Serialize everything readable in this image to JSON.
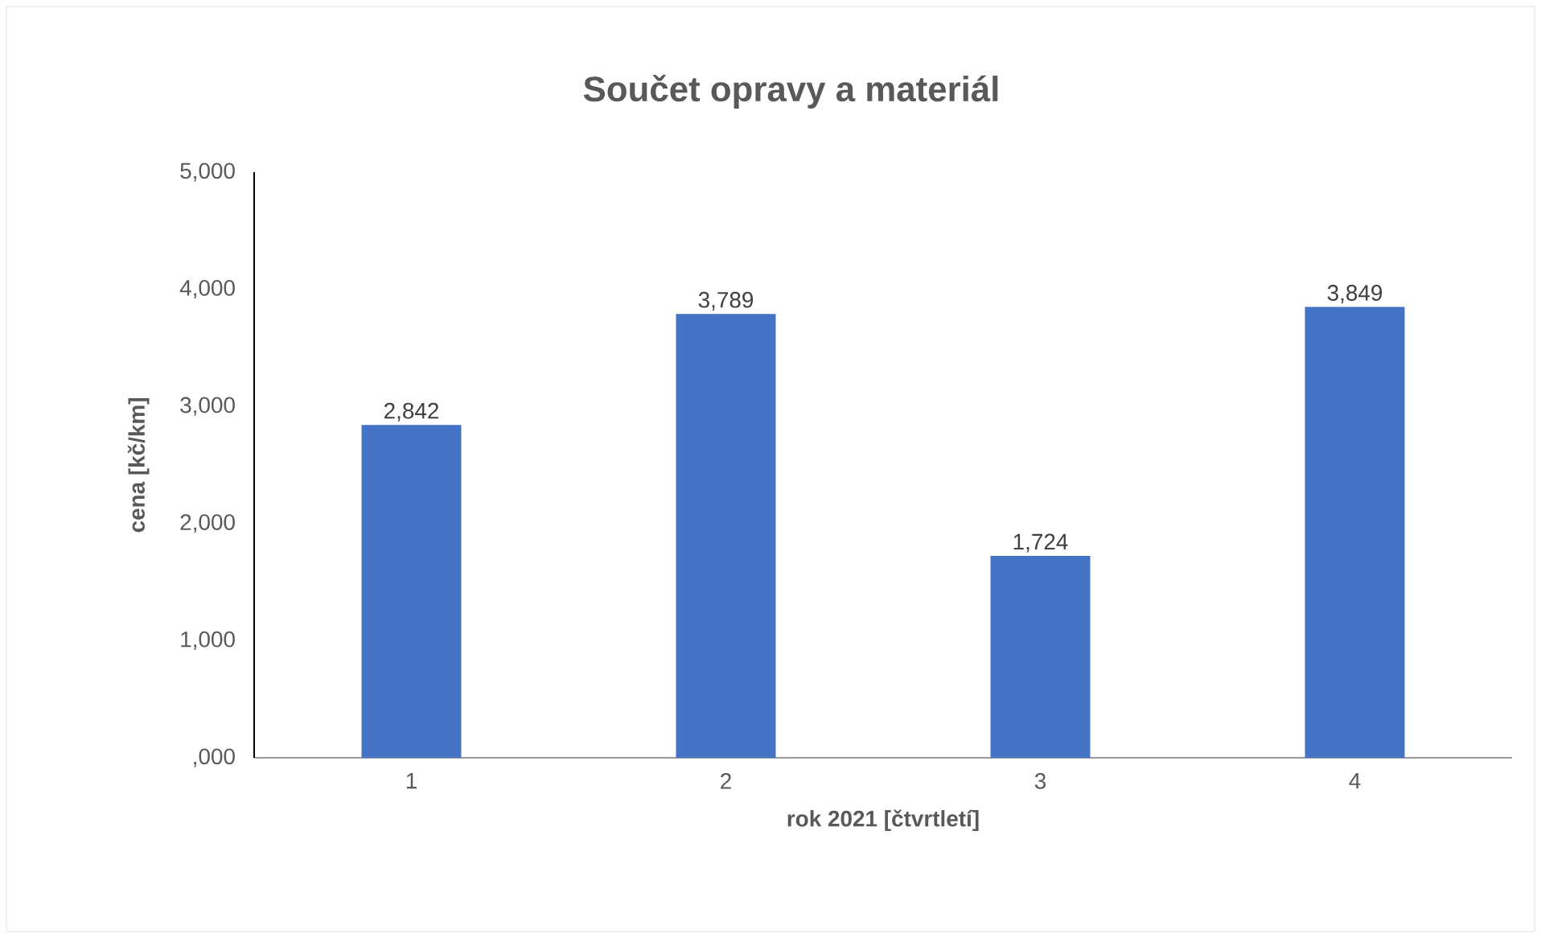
{
  "chart_data": {
    "type": "bar",
    "title": "Součet opravy a materiál",
    "xlabel": "rok 2021 [čtvrtletí]",
    "ylabel": "cena [kč/km]",
    "categories": [
      "1",
      "2",
      "3",
      "4"
    ],
    "values": [
      2842,
      3789,
      1724,
      3849
    ],
    "value_labels": [
      "2,842",
      "3,789",
      "1,724",
      "3,849"
    ],
    "color": "#4472c4",
    "ylim": [
      0,
      5000
    ],
    "yticks": [
      {
        "value": 0,
        "label": ",000"
      },
      {
        "value": 1000,
        "label": "1,000"
      },
      {
        "value": 2000,
        "label": "2,000"
      },
      {
        "value": 3000,
        "label": "3,000"
      },
      {
        "value": 4000,
        "label": "4,000"
      },
      {
        "value": 5000,
        "label": "5,000"
      }
    ],
    "grid": false
  }
}
